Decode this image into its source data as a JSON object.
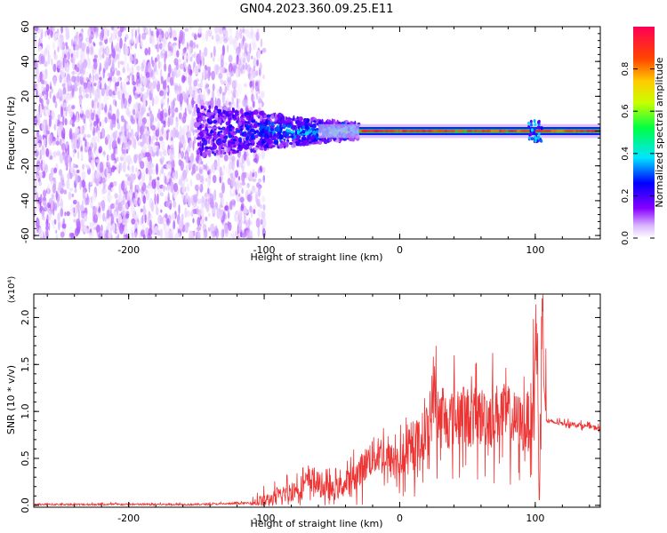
{
  "title": "GN04.2023.360.09.25.E11",
  "chart_data": [
    {
      "type": "heatmap",
      "xlabel": "Height of straight line (km)",
      "ylabel": "Frequency (Hz)",
      "xlim": [
        -270,
        148
      ],
      "ylim": [
        -62,
        60
      ],
      "x_ticks": [
        -200,
        -100,
        0,
        100
      ],
      "y_ticks": [
        -60,
        -40,
        -20,
        0,
        20,
        40,
        60
      ],
      "colorbar": {
        "label": "Normalized spectral amplitude",
        "range": [
          0.0,
          1.0
        ],
        "ticks": [
          0.0,
          0.2,
          0.4,
          0.6,
          0.8
        ],
        "colormap": [
          "#ffffff",
          "#d8b4fe",
          "#8800ff",
          "#0000ff",
          "#00e5ff",
          "#00ff44",
          "#c8ff00",
          "#ffcc00",
          "#ff4400",
          "#ff0055"
        ]
      },
      "features": [
        {
          "name": "broadband noise",
          "x_range": [
            -270,
            -100
          ],
          "f_range": [
            -60,
            60
          ],
          "amplitude": 0.1
        },
        {
          "name": "converging signal",
          "x_range": [
            -150,
            -30
          ],
          "f_halfwidth_start": 15,
          "f_halfwidth_end": 4,
          "amplitude": 0.3
        },
        {
          "name": "steady tone",
          "x_range": [
            -30,
            148
          ],
          "frequency": 0,
          "amplitude": 0.95
        }
      ]
    },
    {
      "type": "line",
      "xlabel": "Height of straight line (km)",
      "ylabel": "SNR (10 * v/v)",
      "y_multiplier": "(x10⁴)",
      "xlim": [
        -270,
        148
      ],
      "ylim": [
        -0.02,
        2.25
      ],
      "x_ticks": [
        -200,
        -100,
        0,
        100
      ],
      "y_ticks": [
        "0.0",
        "0.5",
        "1.0",
        "1.5",
        "2.0"
      ],
      "color": "#ee3333",
      "series": [
        {
          "x": [
            -270,
            -200,
            -150,
            -120,
            -105,
            -95,
            -85,
            -75,
            -65,
            -58,
            -50,
            -40,
            -30,
            -22,
            -15,
            -8,
            0,
            8,
            15,
            22,
            25,
            28,
            32,
            38,
            45,
            55,
            65,
            75,
            85,
            92,
            98,
            101,
            103,
            105,
            108,
            115,
            125,
            135,
            148
          ],
          "y": [
            0.01,
            0.01,
            0.01,
            0.02,
            0.03,
            0.06,
            0.12,
            0.18,
            0.28,
            0.2,
            0.15,
            0.22,
            0.35,
            0.5,
            0.55,
            0.48,
            0.45,
            0.55,
            0.7,
            0.82,
            1.25,
            0.95,
            0.9,
            0.92,
            0.95,
            0.93,
            0.95,
            0.98,
            0.9,
            0.85,
            1.0,
            1.85,
            0.0,
            2.25,
            0.9,
            0.88,
            0.87,
            0.85,
            0.82
          ]
        }
      ]
    }
  ]
}
